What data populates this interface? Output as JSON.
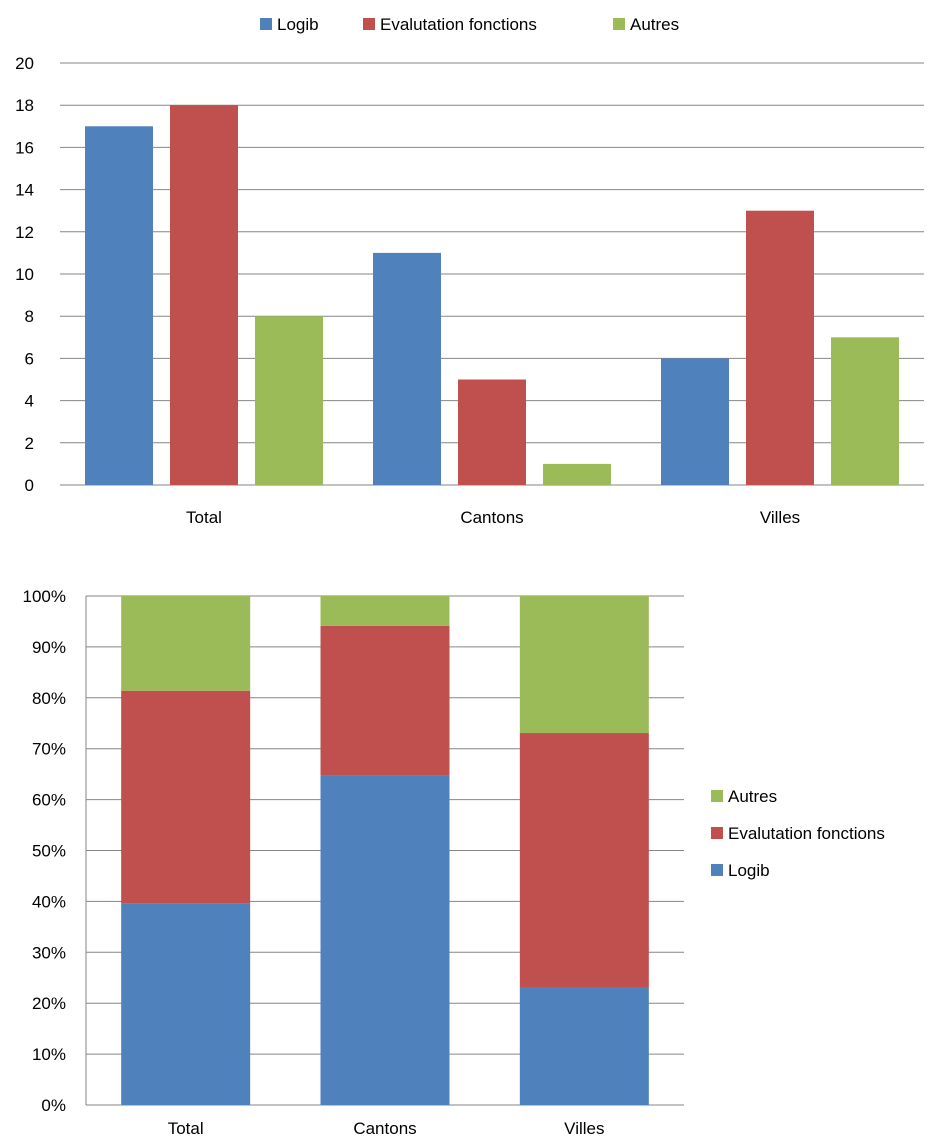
{
  "chart_data": [
    {
      "type": "bar",
      "categories": [
        "Total",
        "Cantons",
        "Villes"
      ],
      "series": [
        {
          "name": "Logib",
          "values": [
            17,
            11,
            6
          ],
          "color": "#4F81BD"
        },
        {
          "name": "Evalutation fonctions",
          "values": [
            18,
            5,
            13
          ],
          "color": "#C0504D"
        },
        {
          "name": "Autres",
          "values": [
            8,
            1,
            7
          ],
          "color": "#9BBB59"
        }
      ],
      "ylim": [
        0,
        20
      ],
      "yticks": [
        "0",
        "2",
        "4",
        "6",
        "8",
        "10",
        "12",
        "14",
        "16",
        "18",
        "20"
      ],
      "grid": true,
      "legend_position": "top"
    },
    {
      "type": "bar",
      "stacked": "percent",
      "categories": [
        "Total",
        "Cantons",
        "Villes"
      ],
      "series": [
        {
          "name": "Logib",
          "values": [
            17,
            11,
            6
          ],
          "color": "#4F81BD"
        },
        {
          "name": "Evalutation fonctions",
          "values": [
            18,
            5,
            13
          ],
          "color": "#C0504D"
        },
        {
          "name": "Autres",
          "values": [
            8,
            1,
            7
          ],
          "color": "#9BBB59"
        }
      ],
      "ylim": [
        0,
        100
      ],
      "yticks": [
        "0%",
        "10%",
        "20%",
        "30%",
        "40%",
        "50%",
        "60%",
        "70%",
        "80%",
        "90%",
        "100%"
      ],
      "grid": true,
      "legend_position": "right"
    }
  ]
}
